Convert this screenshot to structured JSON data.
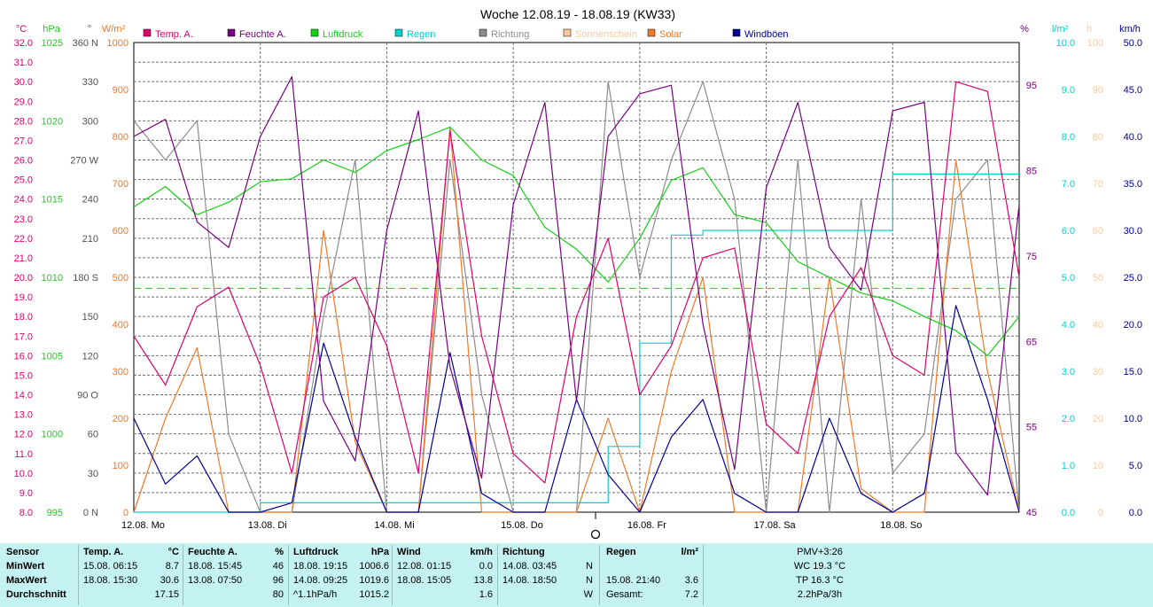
{
  "title": "Woche 12.08.19 - 18.08.19 (KW33)",
  "colors": {
    "temp": "#e0006e",
    "humidity": "#7a0082",
    "pressure": "#14d214",
    "rain": "#00d2d2",
    "direction": "#8c8c8c",
    "sunshine": "#ffc896",
    "solar": "#f07828",
    "gust": "#000096",
    "grid": "#6e6e6e",
    "panel": "#c4f2f2"
  },
  "axes": {
    "temp": {
      "unit": "°C",
      "ticks": [
        "8.0",
        "9.0",
        "10.0",
        "11.0",
        "12.0",
        "13.0",
        "14.0",
        "15.0",
        "16.0",
        "17.0",
        "18.0",
        "19.0",
        "20.0",
        "21.0",
        "22.0",
        "23.0",
        "24.0",
        "25.0",
        "26.0",
        "27.0",
        "28.0",
        "29.0",
        "30.0",
        "31.0",
        "32.0"
      ]
    },
    "pressure": {
      "unit": "hPa",
      "ticks": [
        "995",
        "1000",
        "1005",
        "1010",
        "1015",
        "1020",
        "1025"
      ]
    },
    "direction": {
      "unit": "°",
      "ticks": [
        "0 N",
        "30",
        "60",
        "90 O",
        "120",
        "150",
        "180 S",
        "210",
        "240",
        "270 W",
        "300",
        "330",
        "360 N"
      ]
    },
    "solar": {
      "unit": "W/m²",
      "ticks": [
        "0",
        "100",
        "200",
        "300",
        "400",
        "500",
        "600",
        "700",
        "800",
        "900",
        "1000"
      ]
    },
    "humidity": {
      "unit": "%",
      "ticks": [
        "45",
        "55",
        "65",
        "75",
        "85",
        "95"
      ]
    },
    "rain": {
      "unit": "l/m²",
      "ticks": [
        "0.0",
        "1.0",
        "2.0",
        "3.0",
        "4.0",
        "5.0",
        "6.0",
        "7.0",
        "8.0",
        "9.0",
        "10.0"
      ]
    },
    "sunshine": {
      "unit": "h",
      "ticks": [
        "0",
        "10",
        "20",
        "30",
        "40",
        "50",
        "60",
        "70",
        "80",
        "90",
        "100"
      ]
    },
    "wind": {
      "unit": "km/h",
      "ticks": [
        "0.0",
        "5.0",
        "10.0",
        "15.0",
        "20.0",
        "25.0",
        "30.0",
        "35.0",
        "40.0",
        "45.0",
        "50.0"
      ]
    }
  },
  "x_labels": [
    "12.08. Mo",
    "13.08. Di",
    "14.08. Mi",
    "15.08. Do",
    "16.08. Fr",
    "17.08. Sa",
    "18.08. So"
  ],
  "legend": [
    "Temp. A.",
    "Feuchte A.",
    "Luftdruck",
    "Regen",
    "Richtung",
    "Sonnenschein",
    "Solar",
    "Windböen"
  ],
  "chart_data": {
    "type": "line",
    "title": "Woche 12.08.19 - 18.08.19 (KW33)",
    "x": [
      "12.08. 00:00",
      "12.08. 06:00",
      "12.08. 12:00",
      "12.08. 18:00",
      "13.08. 00:00",
      "13.08. 06:00",
      "13.08. 12:00",
      "13.08. 18:00",
      "14.08. 00:00",
      "14.08. 06:00",
      "14.08. 12:00",
      "14.08. 18:00",
      "15.08. 00:00",
      "15.08. 06:00",
      "15.08. 12:00",
      "15.08. 18:00",
      "16.08. 00:00",
      "16.08. 06:00",
      "16.08. 12:00",
      "16.08. 18:00",
      "17.08. 00:00",
      "17.08. 06:00",
      "17.08. 12:00",
      "17.08. 18:00",
      "18.08. 00:00",
      "18.08. 06:00",
      "18.08. 12:00",
      "18.08. 18:00",
      "18.08. 24:00"
    ],
    "pressure_reference_hPa": 1009.3,
    "series": [
      {
        "name": "Temp. A.",
        "unit": "°C",
        "values": [
          17.0,
          14.5,
          18.5,
          19.5,
          15.5,
          10.0,
          19.0,
          20.0,
          16.5,
          10.0,
          27.5,
          17.0,
          11.0,
          9.5,
          18.0,
          22.0,
          14.0,
          16.5,
          21.0,
          21.5,
          12.5,
          11.0,
          18.0,
          20.5,
          16.0,
          15.0,
          30.0,
          29.5,
          20.0
        ]
      },
      {
        "name": "Feuchte A.",
        "unit": "%",
        "values": [
          89,
          91,
          79,
          76,
          89,
          96,
          58,
          51,
          78,
          92,
          62,
          49,
          81,
          93,
          58,
          89,
          94,
          95,
          67,
          50,
          83,
          93,
          76,
          71,
          92,
          93,
          52,
          47,
          81
        ]
      },
      {
        "name": "Luftdruck",
        "unit": "hPa",
        "values": [
          1014.5,
          1015.8,
          1014.0,
          1014.8,
          1016.1,
          1016.3,
          1017.5,
          1016.7,
          1018.1,
          1018.8,
          1019.6,
          1017.5,
          1016.5,
          1013.2,
          1011.8,
          1009.7,
          1012.5,
          1016.2,
          1017.0,
          1014.0,
          1013.5,
          1011.0,
          1010.0,
          1009.0,
          1008.5,
          1007.5,
          1006.6,
          1005.0,
          1007.5
        ]
      },
      {
        "name": "Regen",
        "unit": "l/m²",
        "values": [
          0.0,
          0.0,
          0.0,
          0.0,
          0.2,
          0.2,
          0.2,
          0.2,
          0.2,
          0.2,
          0.2,
          0.2,
          0.2,
          0.2,
          0.2,
          1.4,
          3.6,
          5.9,
          6.0,
          6.0,
          6.0,
          6.0,
          6.0,
          6.0,
          7.2,
          7.2,
          7.2,
          7.2,
          7.2
        ]
      },
      {
        "name": "Richtung",
        "unit": "°",
        "values": [
          300,
          270,
          300,
          60,
          0,
          0,
          150,
          270,
          0,
          0,
          270,
          90,
          0,
          0,
          0,
          330,
          180,
          270,
          330,
          240,
          0,
          270,
          0,
          240,
          30,
          60,
          240,
          270,
          0
        ]
      },
      {
        "name": "Solar",
        "unit": "W/m²",
        "values": [
          0,
          200,
          350,
          0,
          0,
          0,
          600,
          150,
          0,
          0,
          820,
          0,
          0,
          0,
          0,
          200,
          0,
          300,
          500,
          0,
          0,
          0,
          500,
          50,
          0,
          0,
          750,
          300,
          0
        ]
      },
      {
        "name": "Windböen",
        "unit": "km/h",
        "values": [
          10.0,
          3.0,
          6.0,
          0.0,
          0.0,
          1.0,
          18.0,
          8.0,
          0.0,
          0.0,
          17.0,
          2.0,
          0.0,
          0.0,
          12.0,
          4.0,
          0.0,
          8.0,
          12.0,
          2.0,
          0.0,
          0.0,
          10.0,
          2.0,
          0.0,
          2.0,
          22.0,
          12.0,
          0.0
        ]
      }
    ]
  },
  "stats": {
    "sensor": {
      "header": "Sensor",
      "rows": [
        "MinWert",
        "MaxWert",
        "Durchschnitt"
      ]
    },
    "temp": {
      "header": "Temp. A.",
      "unit": "°C",
      "rows": [
        {
          "time": "15.08.  06:15",
          "value": "8.7"
        },
        {
          "time": "18.08.  15:30",
          "value": "30.6"
        },
        {
          "time": "",
          "value": "17.15"
        }
      ]
    },
    "hum": {
      "header": "Feuchte A.",
      "unit": "%",
      "rows": [
        {
          "time": "18.08.  15:45",
          "value": "46"
        },
        {
          "time": "13.08.  07:50",
          "value": "96"
        },
        {
          "time": "",
          "value": "80"
        }
      ]
    },
    "press": {
      "header": "Luftdruck",
      "unit": "hPa",
      "rows": [
        {
          "time": "18.08.  19:15",
          "value": "1006.6"
        },
        {
          "time": "14.08.  09:25",
          "value": "1019.6"
        },
        {
          "time": "^1.1hPa/h",
          "value": "1015.2"
        }
      ]
    },
    "wind": {
      "header": "Wind",
      "unit": "km/h",
      "rows": [
        {
          "time": "12.08.  01:15",
          "value": "0.0"
        },
        {
          "time": "18.08.  15:05",
          "value": "13.8"
        },
        {
          "time": "",
          "value": "1.6"
        }
      ]
    },
    "dir": {
      "header": "Richtung",
      "rows": [
        {
          "time": "14.08.  03:45",
          "value": "N"
        },
        {
          "time": "14.08.  18:50",
          "value": "N"
        },
        {
          "time": "",
          "value": "W"
        }
      ]
    },
    "rain": {
      "header": "Regen",
      "unit": "l/m²",
      "rows": [
        {
          "time": "",
          "value": ""
        },
        {
          "time": "15.08.  21:40",
          "value": "3.6"
        },
        {
          "time": "Gesamt:",
          "value": "7.2"
        }
      ]
    },
    "pmv": {
      "header": "PMV+3:26",
      "rows": [
        "WC 19.3 °C",
        "TP 16.3 °C",
        "2.2hPa/3h"
      ]
    }
  }
}
